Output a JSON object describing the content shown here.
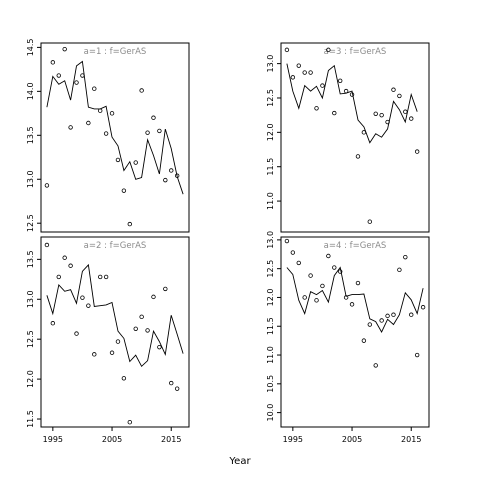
{
  "chart_data": {
    "type": "scatter",
    "xlabel": "Year",
    "panels": [
      {
        "title": "a=1  :  f=GerAS",
        "ylim": [
          12.4,
          14.55
        ],
        "yticks": [
          "12.5",
          "13.0",
          "13.5",
          "14.0",
          "14.5"
        ],
        "yticks_values": [
          12.5,
          13.0,
          13.5,
          14.0,
          14.5
        ],
        "xticks": [],
        "x": [
          1994,
          1995,
          1996,
          1997,
          1998,
          1999,
          2000,
          2001,
          2002,
          2003,
          2004,
          2005,
          2006,
          2007,
          2008,
          2009,
          2010,
          2011,
          2012,
          2013,
          2014,
          2015,
          2016,
          2017
        ],
        "points": [
          12.93,
          14.33,
          14.18,
          14.48,
          13.59,
          14.1,
          14.18,
          13.64,
          14.03,
          13.78,
          13.52,
          13.75,
          13.22,
          12.87,
          12.49,
          13.19,
          14.01,
          13.53,
          13.7,
          13.55,
          12.99,
          13.1,
          13.04,
          null
        ],
        "line": [
          13.82,
          14.17,
          14.08,
          14.12,
          13.9,
          14.29,
          14.34,
          13.82,
          13.8,
          13.8,
          13.83,
          13.48,
          13.38,
          13.1,
          13.2,
          13.0,
          13.02,
          13.45,
          13.27,
          13.06,
          13.57,
          13.35,
          13.03,
          12.83
        ]
      },
      {
        "title": "a=3  :  f=GerAS",
        "ylim": [
          10.55,
          13.3
        ],
        "yticks": [
          "11.0",
          "11.5",
          "12.0",
          "12.5",
          "13.0"
        ],
        "yticks_values": [
          11.0,
          11.5,
          12.0,
          12.5,
          13.0
        ],
        "xticks": [],
        "x": [
          1994,
          1995,
          1996,
          1997,
          1998,
          1999,
          2000,
          2001,
          2002,
          2003,
          2004,
          2005,
          2006,
          2007,
          2008,
          2009,
          2010,
          2011,
          2012,
          2013,
          2014,
          2015,
          2016,
          2017
        ],
        "points": [
          13.2,
          12.8,
          12.97,
          12.87,
          12.87,
          12.35,
          12.68,
          13.2,
          12.28,
          12.75,
          12.6,
          12.55,
          11.65,
          12.0,
          10.7,
          12.27,
          12.25,
          12.15,
          12.62,
          12.53,
          12.3,
          12.2,
          11.72,
          null
        ],
        "line": [
          13.0,
          12.6,
          12.35,
          12.68,
          12.6,
          12.67,
          12.5,
          12.9,
          12.97,
          12.56,
          12.57,
          12.6,
          12.18,
          12.08,
          11.85,
          11.98,
          11.93,
          12.05,
          12.45,
          12.33,
          12.15,
          12.55,
          12.3,
          null
        ]
      },
      {
        "title": "a=2  :  f=GerAS",
        "ylim": [
          11.4,
          13.78
        ],
        "yticks": [
          "11.5",
          "12.0",
          "12.5",
          "13.0",
          "13.5"
        ],
        "yticks_values": [
          11.5,
          12.0,
          12.5,
          13.0,
          13.5
        ],
        "xticks": [
          "1995",
          "2005",
          "2015"
        ],
        "xticks_values": [
          1995,
          2005,
          2015
        ],
        "x": [
          1994,
          1995,
          1996,
          1997,
          1998,
          1999,
          2000,
          2001,
          2002,
          2003,
          2004,
          2005,
          2006,
          2007,
          2008,
          2009,
          2010,
          2011,
          2012,
          2013,
          2014,
          2015,
          2016,
          2017
        ],
        "points": [
          13.68,
          12.7,
          13.28,
          13.52,
          13.42,
          12.57,
          13.02,
          12.92,
          12.31,
          13.28,
          13.28,
          12.33,
          12.47,
          12.01,
          11.46,
          12.63,
          12.78,
          12.61,
          13.03,
          12.4,
          13.13,
          11.95,
          11.88,
          null
        ],
        "line": [
          13.05,
          12.82,
          13.18,
          13.1,
          13.12,
          12.95,
          13.35,
          13.43,
          12.91,
          12.92,
          12.93,
          12.96,
          12.6,
          12.51,
          12.22,
          12.3,
          12.16,
          12.23,
          12.6,
          12.47,
          12.31,
          12.8,
          12.56,
          12.32
        ]
      },
      {
        "title": "a=4  :  f=GerAS",
        "ylim": [
          9.75,
          13.05
        ],
        "yticks": [
          "10.0",
          "10.5",
          "11.0",
          "11.5",
          "12.0",
          "12.5",
          "13.0"
        ],
        "yticks_values": [
          10.0,
          10.5,
          11.0,
          11.5,
          12.0,
          12.5,
          13.0
        ],
        "xticks": [
          "1995",
          "2005",
          "2015"
        ],
        "xticks_values": [
          1995,
          2005,
          2015
        ],
        "x": [
          1994,
          1995,
          1996,
          1997,
          1998,
          1999,
          2000,
          2001,
          2002,
          2003,
          2004,
          2005,
          2006,
          2007,
          2008,
          2009,
          2010,
          2011,
          2012,
          2013,
          2014,
          2015,
          2016,
          2017
        ],
        "points": [
          12.98,
          12.78,
          12.6,
          12.0,
          12.38,
          11.95,
          12.2,
          12.72,
          12.52,
          12.45,
          12.0,
          11.88,
          12.25,
          11.25,
          11.53,
          10.82,
          11.6,
          11.68,
          11.7,
          12.48,
          12.7,
          11.7,
          11.0,
          11.83
        ],
        "line": [
          12.52,
          12.4,
          11.95,
          11.72,
          12.1,
          12.05,
          12.12,
          11.92,
          12.38,
          12.52,
          12.02,
          12.05,
          12.05,
          12.06,
          11.63,
          11.58,
          11.4,
          11.62,
          11.53,
          11.7,
          12.08,
          11.96,
          11.72,
          12.16
        ]
      }
    ]
  }
}
